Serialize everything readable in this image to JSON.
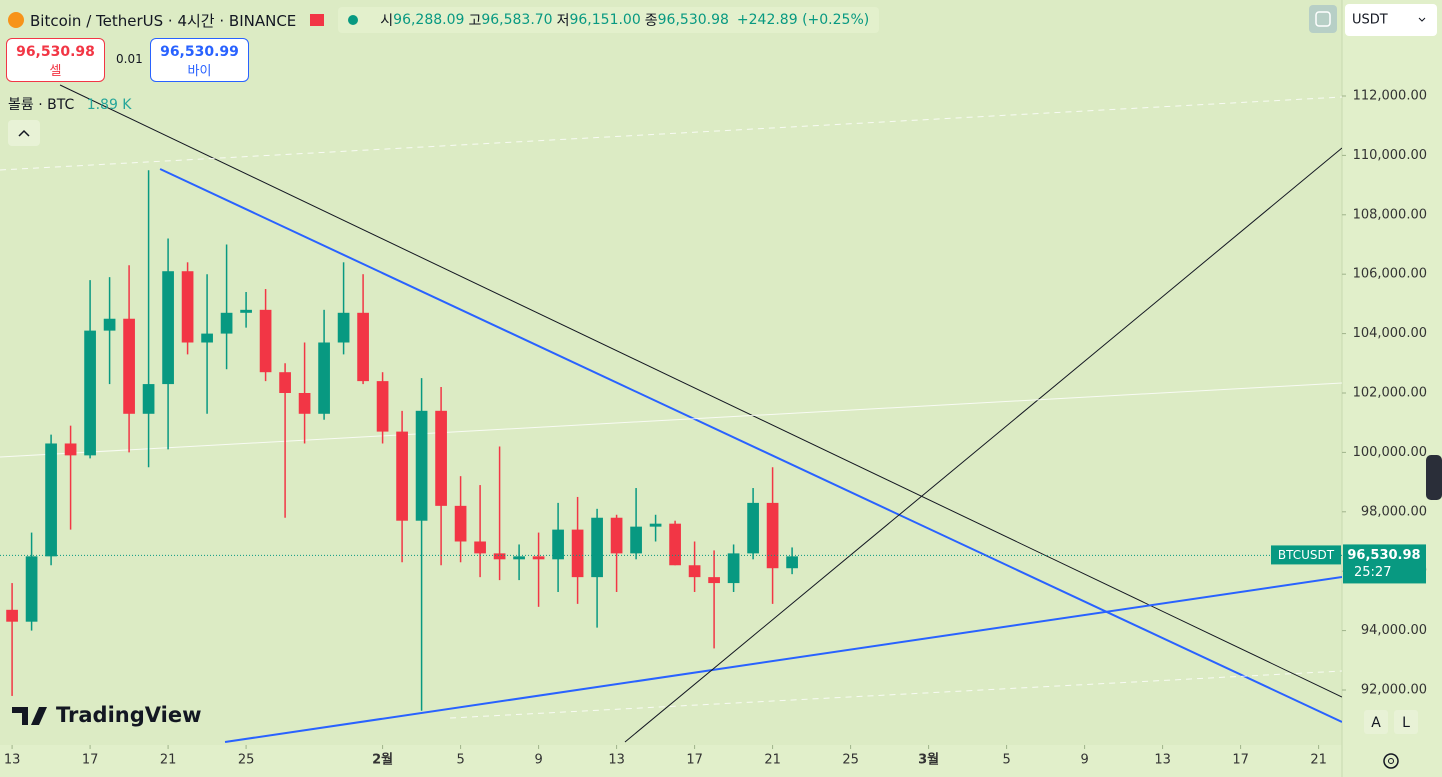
{
  "header": {
    "symbol": "Bitcoin / TetherUS · 4시간 · BINANCE",
    "ohlc": [
      {
        "label": "시",
        "value": "96,288.09"
      },
      {
        "label": "고",
        "value": "96,583.70"
      },
      {
        "label": "저",
        "value": "96,151.00"
      },
      {
        "label": "종",
        "value": "96,530.98"
      }
    ],
    "change": "+242.89 (+0.25%)"
  },
  "order": {
    "sell_price": "96,530.98",
    "sell": "셀",
    "quantity": "0.01",
    "buy_price": "96,530.99",
    "buy": "바이"
  },
  "volume": {
    "label": "볼륨 · BTC",
    "value": "1.89 K"
  },
  "currency": "USDT",
  "brand": "TradingView",
  "scale_buttons": [
    "A",
    "L"
  ],
  "chart_data": {
    "type": "candlestick",
    "x": [
      13,
      14,
      15,
      16,
      17,
      18,
      19,
      20,
      21,
      22,
      23,
      24,
      25,
      26,
      27,
      28,
      29,
      30,
      31,
      32,
      33,
      34,
      35,
      36,
      37,
      38,
      39,
      40,
      41,
      42,
      43,
      44,
      45,
      46,
      47,
      48,
      49,
      50,
      51,
      52,
      53
    ],
    "open": [
      94700,
      94300,
      96500,
      100300,
      99900,
      104100,
      104500,
      101300,
      102300,
      106100,
      103700,
      104000,
      104700,
      104800,
      102700,
      102000,
      101300,
      103700,
      104700,
      102400,
      100700,
      97700,
      101400,
      98200,
      97000,
      96600,
      96400,
      96500,
      96400,
      97400,
      95800,
      97800,
      96600,
      97500,
      97600,
      96200,
      95800,
      95600,
      96600,
      98300,
      96100
    ],
    "high": [
      95600,
      97300,
      100600,
      100900,
      105800,
      105900,
      106300,
      109500,
      107200,
      106400,
      106000,
      107000,
      105400,
      105500,
      103000,
      103700,
      104800,
      106400,
      106000,
      102700,
      101400,
      102500,
      102200,
      99200,
      98900,
      100200,
      96900,
      97300,
      98300,
      98500,
      98100,
      97900,
      98800,
      97900,
      97700,
      97000,
      96700,
      96900,
      98800,
      99500,
      96800
    ],
    "low": [
      91800,
      94000,
      96200,
      97400,
      99800,
      102300,
      100000,
      99500,
      100100,
      103300,
      101300,
      102800,
      104200,
      102400,
      97800,
      100300,
      101100,
      103300,
      102300,
      100300,
      96300,
      91300,
      96200,
      96300,
      95800,
      95700,
      95700,
      94800,
      95300,
      94900,
      94100,
      95300,
      96400,
      97000,
      96200,
      95300,
      93400,
      95300,
      96400,
      94900,
      95900
    ],
    "close": [
      94300,
      96500,
      100300,
      99900,
      104100,
      104500,
      101300,
      102300,
      106100,
      103700,
      104000,
      104700,
      104800,
      102700,
      102000,
      101300,
      103700,
      104700,
      102400,
      100700,
      97700,
      101400,
      98200,
      97000,
      96600,
      96400,
      96500,
      96400,
      97400,
      95800,
      97800,
      96600,
      97500,
      97600,
      96200,
      95800,
      95600,
      96600,
      98300,
      96100,
      96500
    ],
    "up_color": "#089981",
    "down_color": "#f23645",
    "xlim": [
      12.38,
      81.2
    ],
    "xticks": [
      {
        "value": 13,
        "label": "13"
      },
      {
        "value": 17,
        "label": "17"
      },
      {
        "value": 21,
        "label": "21"
      },
      {
        "value": 25,
        "label": "25"
      },
      {
        "value": 32,
        "label": "2월"
      },
      {
        "value": 36,
        "label": "5"
      },
      {
        "value": 40,
        "label": "9"
      },
      {
        "value": 44,
        "label": "13"
      },
      {
        "value": 48,
        "label": "17"
      },
      {
        "value": 52,
        "label": "21"
      },
      {
        "value": 56,
        "label": "25"
      },
      {
        "value": 60,
        "label": "3월"
      },
      {
        "value": 64,
        "label": "5"
      },
      {
        "value": 68,
        "label": "9"
      },
      {
        "value": 72,
        "label": "13"
      },
      {
        "value": 76,
        "label": "17"
      },
      {
        "value": 80,
        "label": "21"
      }
    ],
    "ylim": [
      90148,
      115232
    ],
    "yticks": [
      {
        "value": 92000,
        "label": "92,000.00"
      },
      {
        "value": 94000,
        "label": "94,000.00"
      },
      {
        "value": 96000,
        "label": "96,000.00"
      },
      {
        "value": 98000,
        "label": "98,000.00"
      },
      {
        "value": 100000,
        "label": "100,000.00"
      },
      {
        "value": 102000,
        "label": "102,000.00"
      },
      {
        "value": 104000,
        "label": "104,000.00"
      },
      {
        "value": 106000,
        "label": "106,000.00"
      },
      {
        "value": 108000,
        "label": "108,000.00"
      },
      {
        "value": 110000,
        "label": "110,000.00"
      },
      {
        "value": 112000,
        "label": "112,000.00"
      }
    ],
    "grid": false,
    "trendlines": [
      {
        "color": "#131722",
        "dashed": false,
        "x": [
          15.46,
          81.2
        ],
        "y": [
          112370,
          91764
        ]
      },
      {
        "color": "#2962ff",
        "dashed": false,
        "x": [
          20.59,
          81.2
        ],
        "y": [
          109542,
          90922
        ]
      },
      {
        "color": "#2962ff",
        "dashed": false,
        "x": [
          23.92,
          81.2
        ],
        "y": [
          90249,
          95805
        ]
      },
      {
        "color": "#131722",
        "dashed": false,
        "x": [
          44.43,
          81.2
        ],
        "y": [
          90249,
          110249
        ]
      },
      {
        "color": "#ffffff",
        "dashed": false,
        "x": [
          12.38,
          81.2
        ],
        "y": [
          99845,
          102337
        ]
      },
      {
        "color": "#ffffff",
        "dashed": true,
        "x": [
          12.38,
          81.2
        ],
        "y": [
          109508,
          111966
        ]
      },
      {
        "color": "#ffffff",
        "dashed": true,
        "x": [
          35.46,
          81.2
        ],
        "y": [
          91056,
          92639
        ]
      }
    ],
    "last_price": {
      "symbol": "BTCUSDT",
      "value": 96530.98,
      "value_label": "96,530.98",
      "countdown": "25:27",
      "color": "#089981"
    }
  }
}
